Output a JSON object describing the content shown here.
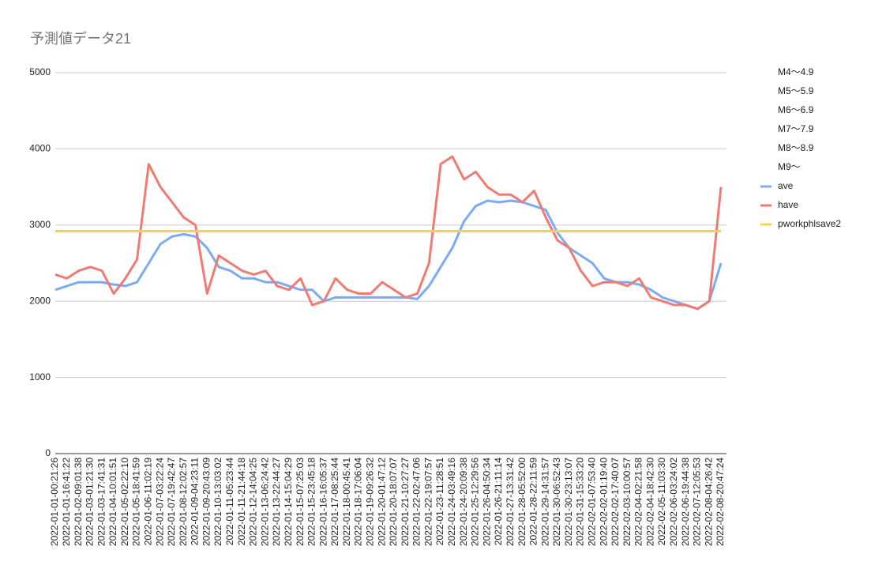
{
  "chart_data": {
    "type": "line",
    "title": "予測値データ21",
    "categories": [
      "2022-01-01-00:21:26",
      "2022-01-01-16:41:22",
      "2022-01-02-09:01:38",
      "2022-01-03-01:21:30",
      "2022-01-03-17:41:31",
      "2022-01-04-10:01:51",
      "2022-01-05-02:22:10",
      "2022-01-05-18:41:59",
      "2022-01-06-11:02:19",
      "2022-01-07-03:22:24",
      "2022-01-07-19:42:47",
      "2022-01-08-12:02:57",
      "2022-01-09-04:23:11",
      "2022-01-09-20:43:09",
      "2022-01-10-13:03:02",
      "2022-01-11-05:23:44",
      "2022-01-11-21:44:18",
      "2022-01-12-14:04:25",
      "2022-01-13-06:24:42",
      "2022-01-13-22:44:27",
      "2022-01-14-15:04:29",
      "2022-01-15-07:25:03",
      "2022-01-15-23:45:18",
      "2022-01-16-16:05:37",
      "2022-01-17-08:25:44",
      "2022-01-18-00:45:41",
      "2022-01-18-17:06:04",
      "2022-01-19-09:26:32",
      "2022-01-20-01:47:12",
      "2022-01-20-18:07:07",
      "2022-01-21-10:27:27",
      "2022-01-22-02:47:06",
      "2022-01-22-19:07:57",
      "2022-01-23-11:28:51",
      "2022-01-24-03:49:16",
      "2022-01-24-20:09:38",
      "2022-01-25-12:29:56",
      "2022-01-26-04:50:34",
      "2022-01-26-21:11:14",
      "2022-01-27-13:31:42",
      "2022-01-28-05:52:00",
      "2022-01-28-22:11:59",
      "2022-01-29-14:31:57",
      "2022-01-30-06:52:43",
      "2022-01-30-23:13:07",
      "2022-01-31-15:33:20",
      "2022-02-01-07:53:40",
      "2022-02-02-01:19:40",
      "2022-02-02-17:40:07",
      "2022-02-03-10:00:57",
      "2022-02-04-02:21:58",
      "2022-02-04-18:42:30",
      "2022-02-05-11:03:30",
      "2022-02-06-03:24:02",
      "2022-02-06-19:44:38",
      "2022-02-07-12:05:53",
      "2022-02-08-04:26:42",
      "2022-02-08-20:47:24"
    ],
    "extra_legend": [
      "M4〜4.9",
      "M5〜5.9",
      "M6〜6.9",
      "M7〜7.9",
      "M8〜8.9",
      "M9〜"
    ],
    "series": [
      {
        "name": "ave",
        "color": "#7baaf7",
        "values": [
          2150,
          2200,
          2250,
          2250,
          2250,
          2220,
          2200,
          2250,
          2500,
          2750,
          2850,
          2880,
          2850,
          2700,
          2450,
          2400,
          2300,
          2300,
          2250,
          2250,
          2200,
          2150,
          2150,
          2000,
          2050,
          2050,
          2050,
          2050,
          2050,
          2050,
          2050,
          2030,
          2200,
          2450,
          2700,
          3050,
          3250,
          3320,
          3300,
          3320,
          3300,
          3250,
          3200,
          2900,
          2700,
          2600,
          2500,
          2300,
          2250,
          2250,
          2220,
          2150,
          2050,
          2000,
          1950,
          1900,
          2000,
          2500
        ]
      },
      {
        "name": "have",
        "color": "#f07b72",
        "values": [
          2350,
          2300,
          2400,
          2450,
          2400,
          2100,
          2300,
          2550,
          3800,
          3500,
          3300,
          3100,
          3000,
          2100,
          2600,
          2500,
          2400,
          2350,
          2400,
          2200,
          2150,
          2300,
          1950,
          2000,
          2300,
          2150,
          2100,
          2100,
          2250,
          2150,
          2050,
          2100,
          2500,
          3800,
          3900,
          3600,
          3700,
          3500,
          3400,
          3400,
          3300,
          3450,
          3100,
          2800,
          2700,
          2400,
          2200,
          2250,
          2250,
          2200,
          2300,
          2050,
          2000,
          1950,
          1950,
          1900,
          2000,
          3500
        ]
      },
      {
        "name": "pworkphlsave2",
        "color": "#fcd04f",
        "values": [
          2920,
          2920,
          2920,
          2920,
          2920,
          2920,
          2920,
          2920,
          2920,
          2920,
          2920,
          2920,
          2920,
          2920,
          2920,
          2920,
          2920,
          2920,
          2920,
          2920,
          2920,
          2920,
          2920,
          2920,
          2920,
          2920,
          2920,
          2920,
          2920,
          2920,
          2920,
          2920,
          2920,
          2920,
          2920,
          2920,
          2920,
          2920,
          2920,
          2920,
          2920,
          2920,
          2920,
          2920,
          2920,
          2920,
          2920,
          2920,
          2920,
          2920,
          2920,
          2920,
          2920,
          2920,
          2920,
          2920,
          2920,
          2920
        ]
      }
    ],
    "ylim": [
      0,
      5000
    ],
    "yticks": [
      0,
      1000,
      2000,
      3000,
      4000,
      5000
    ],
    "grid": true
  }
}
